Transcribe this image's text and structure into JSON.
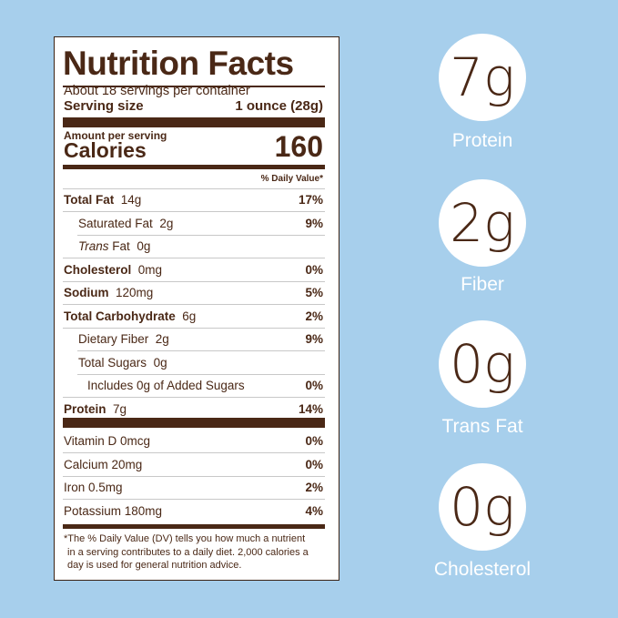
{
  "label": {
    "title": "Nutrition Facts",
    "servings": "About 18 servings per container",
    "serving_size_label": "Serving size",
    "serving_size_value": "1 ounce (28g)",
    "amount_per_serving": "Amount per serving",
    "calories_label": "Calories",
    "calories_value": "160",
    "dv_header": "% Daily Value*",
    "rows": [
      {
        "name": "Total Fat",
        "amount": "14g",
        "dv": "17%"
      },
      {
        "name": "Saturated Fat",
        "amount": "2g",
        "dv": "9%"
      },
      {
        "name": "Trans",
        "name2": "Fat",
        "amount": "0g",
        "dv": ""
      },
      {
        "name": "Cholesterol",
        "amount": "0mg",
        "dv": "0%"
      },
      {
        "name": "Sodium",
        "amount": "120mg",
        "dv": "5%"
      },
      {
        "name": "Total Carbohydrate",
        "amount": "6g",
        "dv": "2%"
      },
      {
        "name": "Dietary Fiber",
        "amount": "2g",
        "dv": "9%"
      },
      {
        "name": "Total Sugars",
        "amount": "0g",
        "dv": ""
      },
      {
        "name": "Includes 0g of Added Sugars",
        "amount": "",
        "dv": "0%"
      },
      {
        "name": "Protein",
        "amount": "7g",
        "dv": "14%"
      }
    ],
    "vitamins": [
      {
        "name": "Vitamin D 0mcg",
        "dv": "0%"
      },
      {
        "name": "Calcium 20mg",
        "dv": "0%"
      },
      {
        "name": "Iron 0.5mg",
        "dv": "2%"
      },
      {
        "name": "Potassium 180mg",
        "dv": "4%"
      }
    ],
    "footnote": "*The % Daily Value (DV) tells you how much a nutrient in a serving contributes to a daily diet. 2,000 calories a day is used for general nutrition advice."
  },
  "highlights": [
    {
      "value": "7g",
      "label": "Protein"
    },
    {
      "value": "2g",
      "label": "Fiber"
    },
    {
      "value": "0g",
      "label": "Trans Fat"
    },
    {
      "value": "0g",
      "label": "Cholesterol"
    }
  ],
  "colors": {
    "background": "#a7cfec",
    "brown": "#4a2816"
  }
}
